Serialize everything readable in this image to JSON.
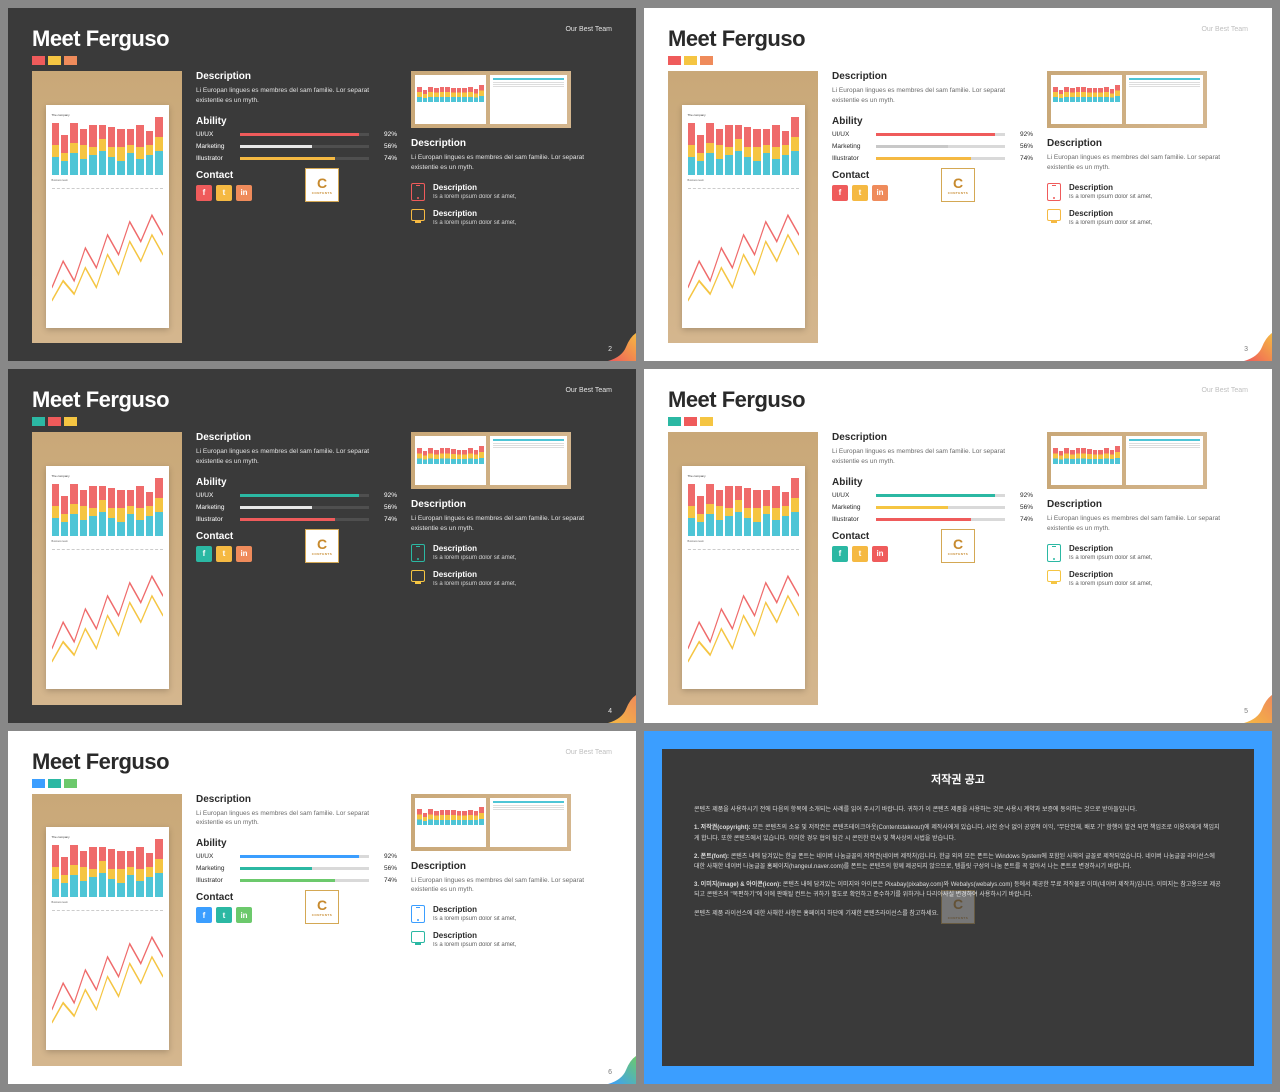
{
  "common": {
    "title": "Meet Ferguso",
    "subtitle": "Our Best Team",
    "desc_heading": "Description",
    "desc_text": "Li Europan lingues es membres del sam familie. Lor separat existentie es un myth.",
    "ability_heading": "Ability",
    "abilities": [
      {
        "label": "UI/UX",
        "value": 92,
        "display": "92%"
      },
      {
        "label": "Marketing",
        "value": 56,
        "display": "56%"
      },
      {
        "label": "Illustrator",
        "value": 74,
        "display": "74%"
      }
    ],
    "contact_heading": "Contact",
    "right_desc_text": "Li Europan lingues es membres del sam familie. Lor separat existentie es un myth.",
    "icon_desc_title": "Description",
    "icon_desc_text": "Is a lorem ipsum dolor sit amet,",
    "logo_letter": "C",
    "logo_sub": "CONTENTS",
    "social": [
      "f",
      "t",
      "in"
    ]
  },
  "chart": {
    "type": "bar",
    "bar_data": [
      [
        18,
        12,
        22
      ],
      [
        14,
        8,
        18
      ],
      [
        22,
        10,
        20
      ],
      [
        16,
        14,
        16
      ],
      [
        20,
        8,
        22
      ],
      [
        24,
        12,
        14
      ],
      [
        18,
        10,
        20
      ],
      [
        14,
        14,
        18
      ],
      [
        22,
        8,
        16
      ],
      [
        16,
        12,
        22
      ],
      [
        20,
        10,
        14
      ],
      [
        24,
        14,
        20
      ]
    ],
    "bar_colors": [
      "#4ec5d6",
      "#f5c542",
      "#ef6b6b"
    ],
    "paper_title": "The company",
    "paper_sub": "Business team"
  },
  "slides": [
    {
      "theme": "dark",
      "page": "2",
      "tab_colors": [
        "#ef5b5b",
        "#f5c542",
        "#ef8b5b"
      ],
      "ability_colors": [
        "#ef5b5b",
        "#e8e8e8",
        "#f5b942"
      ],
      "social_colors": [
        "#ef5b5b",
        "#f5b942",
        "#ef8b5b"
      ],
      "icon_colors": [
        "#ef5b5b",
        "#f5b942"
      ],
      "corner_gradient": [
        "#ef5b5b",
        "#f5b942"
      ]
    },
    {
      "theme": "light",
      "page": "3",
      "tab_colors": [
        "#ef5b5b",
        "#f5c542",
        "#ef8b5b"
      ],
      "ability_colors": [
        "#ef5b5b",
        "#c8c8c8",
        "#f5b942"
      ],
      "social_colors": [
        "#ef5b5b",
        "#f5b942",
        "#ef8b5b"
      ],
      "icon_colors": [
        "#ef5b5b",
        "#f5b942"
      ],
      "corner_gradient": [
        "#ef5b5b",
        "#f5b942"
      ]
    },
    {
      "theme": "dark",
      "page": "4",
      "tab_colors": [
        "#2bb8a3",
        "#ef5b5b",
        "#f5c542"
      ],
      "ability_colors": [
        "#2bb8a3",
        "#e8e8e8",
        "#ef5b5b"
      ],
      "social_colors": [
        "#2bb8a3",
        "#f5b942",
        "#ef8b5b"
      ],
      "icon_colors": [
        "#2bb8a3",
        "#f5c542"
      ],
      "corner_gradient": [
        "#f5b942",
        "#ef8b5b"
      ]
    },
    {
      "theme": "light",
      "page": "5",
      "tab_colors": [
        "#2bb8a3",
        "#ef5b5b",
        "#f5c542"
      ],
      "ability_colors": [
        "#2bb8a3",
        "#f5c542",
        "#ef5b5b"
      ],
      "social_colors": [
        "#2bb8a3",
        "#f5b942",
        "#ef5b5b"
      ],
      "icon_colors": [
        "#2bb8a3",
        "#f5c542"
      ],
      "corner_gradient": [
        "#f5b942",
        "#ef8b5b"
      ]
    },
    {
      "theme": "light",
      "page": "6",
      "tab_colors": [
        "#3b9eff",
        "#2bb8a3",
        "#6cc96c"
      ],
      "ability_colors": [
        "#3b9eff",
        "#2bb8a3",
        "#6cc96c"
      ],
      "social_colors": [
        "#3b9eff",
        "#2bb8a3",
        "#6cc96c"
      ],
      "icon_colors": [
        "#3b9eff",
        "#2bb8a3"
      ],
      "corner_gradient": [
        "#3b9eff",
        "#6cc96c"
      ]
    }
  ],
  "copyright": {
    "title": "저작권 공고",
    "intro": "콘텐츠 제품을 사용하시기 전에 다음의 항목에 소개되는 사례를 읽어 주시기 바랍니다. 귀하가 이 콘텐츠 제품을 사용하는 것은 사용시 계약과 보증에 동의하는 것으로 받아들입니다.",
    "p1_title": "1. 저작권(copyright):",
    "p1": "모든 콘텐츠의 소유 및 저작권은 콘텐츠테이크아웃(Contentstakeout)에 제작사에게 있습니다. 사전 승낙 없이 공영적 이익, \"무단전재, 배포 기\" 함행이 발견 되면 책임조로 이용자에게 책임지게 합니다. 또한 콘텐츠에서 있습니다. 이러한 경우 협의 팀간 시 콘인한 민사 및 책사상의 사법을 받습니다.",
    "p2_title": "2. 폰트(font):",
    "p2": "콘텐츠 내에 담겨있는 한글 폰트는 네이버 나눔글꼴의 저작권(네이버 제작처)입니다. 한글 외의 모든 폰트는 Windows System에 포함된 사채의 글꼴로 제작되었습니다. 네이버 나눔글꼴 라이선스에 대한 사채한 네이버 나눔글꼴 홈페이지(hangeul.naver.com)를 폰트는 콘텐츠의 함께 제공되지 않으므로, 템플릿 구성의 나눔 폰트를 꼭 알아서 나는 폰트로 변경하시기 바랍니다.",
    "p3_title": "3. 이미지(image) & 아이콘(icon):",
    "p3": "콘텐츠 내에 담겨있는 이미지와 아이콘은 Pixabay(pixabay.com)와 Webalys(webalys.com) 등에서 제공한 무료 저작물로 이미(네이버 제작처)입니다. 이미지는 참고용으로 제공되고 콘텐츠의 \"목편하기\"에 이에 판매될 컨트는 귀하가 별도로 확인하고 준수하기를 위하거나 다리아사실 변경하여 사용하시기 바랍니다.",
    "outro": "콘텐츠 제품 라이선스에 대한 사채한 사항은 홈페이지 하단에 기재한 콘텐츠라이선스를 참고하세요."
  }
}
